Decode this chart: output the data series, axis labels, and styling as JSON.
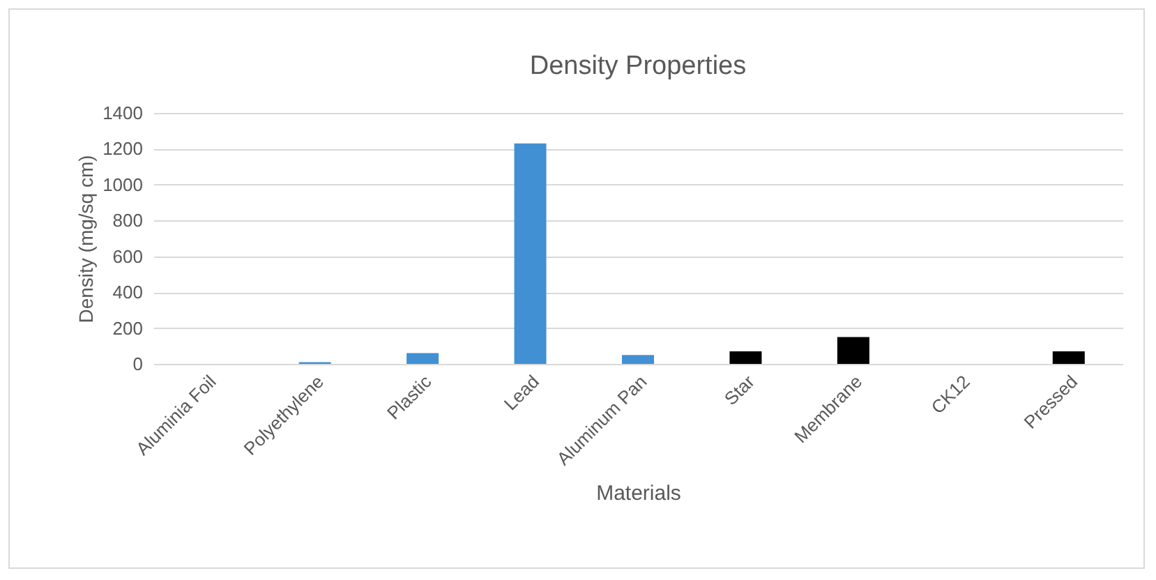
{
  "chart_data": {
    "type": "bar",
    "title": "Density Properties",
    "xlabel": "Materials",
    "ylabel": "Density (mg/sq cm)",
    "categories": [
      "Aluminia Foil",
      "Polyethylene",
      "Plastic",
      "Lead",
      "Aluminum Pan",
      "Star",
      "Membrane",
      "CK12",
      "Pressed"
    ],
    "values": [
      0,
      10,
      60,
      1230,
      50,
      70,
      150,
      0,
      70
    ],
    "colors": [
      "#4190d4",
      "#4190d4",
      "#4190d4",
      "#4190d4",
      "#4190d4",
      "#000000",
      "#000000",
      "#000000",
      "#000000"
    ],
    "ylim": [
      0,
      1400
    ],
    "yticks": [
      0,
      200,
      400,
      600,
      800,
      1000,
      1200,
      1400
    ],
    "grid": "y"
  }
}
